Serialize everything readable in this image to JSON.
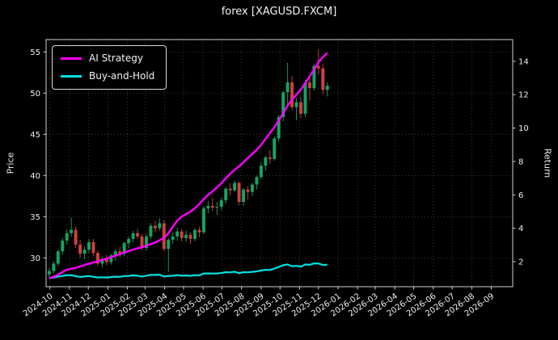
{
  "title": "forex [XAGUSD.FXCM]",
  "legend": {
    "position": "upper left",
    "items": [
      {
        "label": "AI Strategy",
        "color": "#ff00ff"
      },
      {
        "label": "Buy-and-Hold",
        "color": "#00e0e0"
      }
    ]
  },
  "colors": {
    "background": "#000000",
    "text": "#f0f0f0",
    "grid": "#555555",
    "spine": "#cfcfcf",
    "up": "#15a463",
    "down": "#d23f3f",
    "ai": "#ff00ff",
    "bh": "#00e0e0"
  },
  "chart_data": {
    "type": "candlestick+line",
    "title": "forex [XAGUSD.FXCM]",
    "grid": "dotted",
    "price_axis": {
      "label": "Price",
      "ticks": [
        30,
        35,
        40,
        45,
        50,
        55
      ],
      "range": [
        26.5,
        56.5
      ]
    },
    "return_axis": {
      "label": "Return",
      "ticks": [
        2,
        4,
        6,
        8,
        10,
        12,
        14
      ],
      "range": [
        0.5,
        15.3
      ]
    },
    "x_range": [
      "2024-09-25",
      "2026-10-05"
    ],
    "x_ticks": [
      "2024-10",
      "2024-11",
      "2024-12",
      "2025-01",
      "2025-02",
      "2025-03",
      "2025-04",
      "2025-05",
      "2025-06",
      "2025-07",
      "2025-08",
      "2025-09",
      "2025-10",
      "2025-11",
      "2025-12",
      "2026-01",
      "2026-02",
      "2026-03",
      "2026-04",
      "2026-05",
      "2026-06",
      "2026-07",
      "2026-08",
      "2026-09"
    ],
    "candles_ohlc_note": "weekly bars [date, open, high, low, close] on Price axis",
    "candles_ohlc": [
      [
        "2024-09-30",
        28.0,
        28.8,
        27.6,
        28.4
      ],
      [
        "2024-10-07",
        28.4,
        29.6,
        28.1,
        29.3
      ],
      [
        "2024-10-14",
        29.3,
        31.0,
        29.0,
        30.8
      ],
      [
        "2024-10-21",
        30.8,
        32.4,
        30.4,
        32.1
      ],
      [
        "2024-10-28",
        32.1,
        33.5,
        31.6,
        33.0
      ],
      [
        "2024-11-04",
        33.0,
        34.9,
        32.6,
        33.4
      ],
      [
        "2024-11-11",
        33.4,
        33.8,
        31.2,
        31.6
      ],
      [
        "2024-11-18",
        31.6,
        32.2,
        30.0,
        30.5
      ],
      [
        "2024-11-25",
        30.5,
        31.4,
        29.8,
        31.0
      ],
      [
        "2024-12-02",
        31.0,
        32.3,
        30.6,
        31.9
      ],
      [
        "2024-12-09",
        31.9,
        32.3,
        30.2,
        30.6
      ],
      [
        "2024-12-16",
        30.6,
        30.9,
        29.0,
        29.3
      ],
      [
        "2024-12-23",
        29.3,
        30.1,
        28.8,
        29.8
      ],
      [
        "2024-12-30",
        29.8,
        30.4,
        29.1,
        29.5
      ],
      [
        "2025-01-06",
        29.5,
        30.5,
        29.2,
        30.3
      ],
      [
        "2025-01-13",
        30.3,
        31.0,
        29.7,
        30.8
      ],
      [
        "2025-01-20",
        30.8,
        31.3,
        30.1,
        30.5
      ],
      [
        "2025-01-27",
        30.5,
        32.0,
        30.2,
        31.8
      ],
      [
        "2025-02-03",
        31.8,
        32.6,
        31.2,
        32.3
      ],
      [
        "2025-02-10",
        32.3,
        33.3,
        31.9,
        33.0
      ],
      [
        "2025-02-17",
        33.0,
        33.5,
        32.3,
        32.6
      ],
      [
        "2025-02-24",
        32.6,
        32.9,
        30.9,
        31.2
      ],
      [
        "2025-03-03",
        31.2,
        32.9,
        30.9,
        32.6
      ],
      [
        "2025-03-10",
        32.6,
        34.2,
        32.3,
        33.9
      ],
      [
        "2025-03-17",
        33.9,
        34.5,
        33.1,
        33.6
      ],
      [
        "2025-03-24",
        33.6,
        34.8,
        33.3,
        34.2
      ],
      [
        "2025-03-31",
        34.2,
        34.6,
        30.8,
        31.1
      ],
      [
        "2025-04-07",
        31.1,
        32.4,
        28.3,
        32.2
      ],
      [
        "2025-04-14",
        32.2,
        33.1,
        31.7,
        32.6
      ],
      [
        "2025-04-21",
        32.6,
        33.7,
        32.1,
        33.2
      ],
      [
        "2025-04-28",
        33.2,
        33.5,
        32.0,
        32.4
      ],
      [
        "2025-05-05",
        32.4,
        33.3,
        32.0,
        32.8
      ],
      [
        "2025-05-12",
        32.8,
        33.1,
        31.7,
        32.3
      ],
      [
        "2025-05-19",
        32.3,
        33.6,
        32.0,
        33.4
      ],
      [
        "2025-05-26",
        33.4,
        33.8,
        32.5,
        33.1
      ],
      [
        "2025-06-02",
        33.1,
        36.3,
        32.9,
        36.0
      ],
      [
        "2025-06-09",
        36.0,
        36.9,
        35.4,
        36.3
      ],
      [
        "2025-06-16",
        36.3,
        37.3,
        35.7,
        36.1
      ],
      [
        "2025-06-23",
        36.1,
        36.8,
        35.2,
        36.2
      ],
      [
        "2025-06-30",
        36.2,
        37.3,
        35.8,
        37.0
      ],
      [
        "2025-07-07",
        37.0,
        38.6,
        36.6,
        38.4
      ],
      [
        "2025-07-14",
        38.4,
        39.1,
        37.6,
        38.2
      ],
      [
        "2025-07-21",
        38.2,
        39.4,
        38.0,
        39.1
      ],
      [
        "2025-07-28",
        39.1,
        39.3,
        36.4,
        36.8
      ],
      [
        "2025-08-04",
        36.8,
        38.5,
        36.3,
        38.3
      ],
      [
        "2025-08-11",
        38.3,
        38.7,
        37.1,
        38.0
      ],
      [
        "2025-08-18",
        38.0,
        39.1,
        37.5,
        38.9
      ],
      [
        "2025-08-25",
        38.9,
        40.0,
        38.3,
        39.8
      ],
      [
        "2025-09-01",
        39.8,
        41.6,
        39.5,
        41.2
      ],
      [
        "2025-09-08",
        41.2,
        42.4,
        40.6,
        42.2
      ],
      [
        "2025-09-15",
        42.2,
        43.1,
        41.4,
        42.0
      ],
      [
        "2025-09-22",
        42.0,
        44.7,
        41.8,
        44.5
      ],
      [
        "2025-09-29",
        44.5,
        47.4,
        44.1,
        47.1
      ],
      [
        "2025-10-06",
        47.1,
        50.3,
        46.6,
        50.1
      ],
      [
        "2025-10-13",
        50.1,
        53.7,
        48.6,
        51.3
      ],
      [
        "2025-10-20",
        51.3,
        52.1,
        47.9,
        48.3
      ],
      [
        "2025-10-27",
        48.3,
        49.4,
        46.7,
        48.9
      ],
      [
        "2025-11-03",
        48.9,
        49.6,
        47.0,
        47.5
      ],
      [
        "2025-11-10",
        47.5,
        51.6,
        47.1,
        51.3
      ],
      [
        "2025-11-17",
        51.3,
        52.1,
        49.1,
        50.6
      ],
      [
        "2025-11-24",
        50.6,
        53.6,
        50.3,
        53.3
      ],
      [
        "2025-12-01",
        53.3,
        55.3,
        52.3,
        53.0
      ],
      [
        "2025-12-08",
        53.0,
        53.5,
        49.9,
        50.4
      ],
      [
        "2025-12-15",
        50.4,
        51.3,
        49.6,
        50.9
      ]
    ],
    "series_note": "values align with candle dates; plotted on Return axis",
    "series": [
      {
        "name": "AI Strategy",
        "axis": "return",
        "color": "#ff00ff",
        "values": [
          1.0,
          1.1,
          1.22,
          1.38,
          1.52,
          1.58,
          1.62,
          1.72,
          1.8,
          1.88,
          1.95,
          2.02,
          2.1,
          2.18,
          2.26,
          2.36,
          2.45,
          2.55,
          2.63,
          2.72,
          2.8,
          2.86,
          2.95,
          3.05,
          3.15,
          3.28,
          3.42,
          3.7,
          4.1,
          4.45,
          4.7,
          4.85,
          5.0,
          5.2,
          5.45,
          5.75,
          6.0,
          6.2,
          6.45,
          6.7,
          7.0,
          7.25,
          7.5,
          7.7,
          7.95,
          8.2,
          8.45,
          8.7,
          9.0,
          9.35,
          9.7,
          10.05,
          10.45,
          10.9,
          11.35,
          11.7,
          12.0,
          12.3,
          12.7,
          13.1,
          13.5,
          13.95,
          14.25,
          14.5
        ]
      },
      {
        "name": "Buy-and-Hold",
        "axis": "return",
        "color": "#00e0e0",
        "values": [
          1.01,
          1.05,
          1.1,
          1.15,
          1.18,
          1.19,
          1.13,
          1.09,
          1.11,
          1.14,
          1.09,
          1.05,
          1.06,
          1.05,
          1.08,
          1.1,
          1.09,
          1.14,
          1.15,
          1.18,
          1.16,
          1.11,
          1.16,
          1.21,
          1.2,
          1.22,
          1.11,
          1.15,
          1.16,
          1.19,
          1.16,
          1.17,
          1.15,
          1.19,
          1.18,
          1.29,
          1.3,
          1.29,
          1.29,
          1.32,
          1.37,
          1.36,
          1.4,
          1.31,
          1.37,
          1.36,
          1.39,
          1.42,
          1.47,
          1.51,
          1.5,
          1.59,
          1.68,
          1.79,
          1.83,
          1.73,
          1.75,
          1.7,
          1.83,
          1.81,
          1.9,
          1.89,
          1.8,
          1.82
        ]
      }
    ]
  }
}
